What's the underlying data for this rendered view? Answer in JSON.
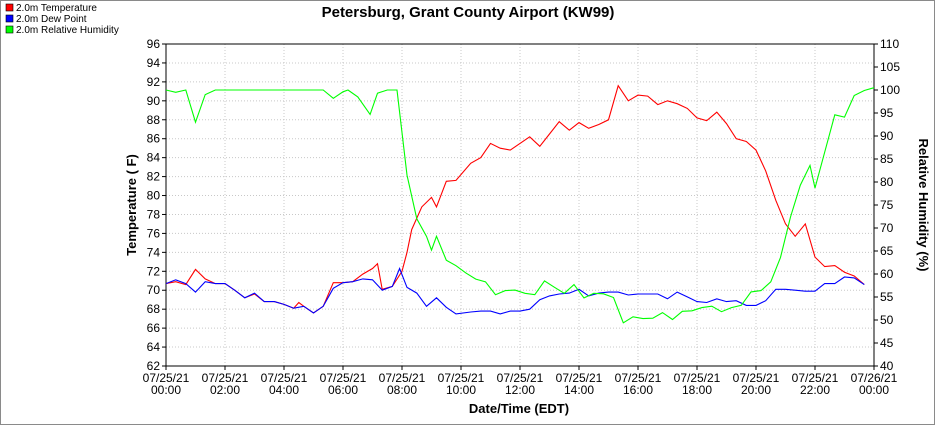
{
  "chart_data": {
    "type": "line",
    "title": "Petersburg, Grant County Airport (KW99)",
    "xlabel": "Date/Time (EDT)",
    "ylabel": "Temperature ( F)",
    "y2label": "Relative Humidity (%)",
    "ylim": [
      62,
      96
    ],
    "y2lim": [
      40,
      110
    ],
    "xlim_hours": [
      0,
      24
    ],
    "grid": true,
    "legend_placement": "top-left",
    "x_ticks": [
      {
        "l1": "07/25/21",
        "l2": "00:00"
      },
      {
        "l1": "07/25/21",
        "l2": "02:00"
      },
      {
        "l1": "07/25/21",
        "l2": "04:00"
      },
      {
        "l1": "07/25/21",
        "l2": "06:00"
      },
      {
        "l1": "07/25/21",
        "l2": "08:00"
      },
      {
        "l1": "07/25/21",
        "l2": "10:00"
      },
      {
        "l1": "07/25/21",
        "l2": "12:00"
      },
      {
        "l1": "07/25/21",
        "l2": "14:00"
      },
      {
        "l1": "07/25/21",
        "l2": "16:00"
      },
      {
        "l1": "07/25/21",
        "l2": "18:00"
      },
      {
        "l1": "07/25/21",
        "l2": "20:00"
      },
      {
        "l1": "07/25/21",
        "l2": "22:00"
      },
      {
        "l1": "07/26/21",
        "l2": "00:00"
      }
    ],
    "y_ticks": [
      62,
      64,
      66,
      68,
      70,
      72,
      74,
      76,
      78,
      80,
      82,
      84,
      86,
      88,
      90,
      92,
      94,
      96
    ],
    "y2_ticks": [
      40,
      45,
      50,
      55,
      60,
      65,
      70,
      75,
      80,
      85,
      90,
      95,
      100,
      105,
      110
    ],
    "series": [
      {
        "name": "2.0m Temperature",
        "color": "#ff0000",
        "axis": "left",
        "points": [
          [
            0.0,
            70.7
          ],
          [
            0.33,
            70.9
          ],
          [
            0.67,
            70.6
          ],
          [
            1.0,
            72.2
          ],
          [
            1.33,
            71.2
          ],
          [
            1.67,
            70.7
          ],
          [
            2.0,
            70.7
          ],
          [
            2.33,
            70.0
          ],
          [
            2.67,
            69.2
          ],
          [
            3.0,
            69.6
          ],
          [
            3.33,
            68.8
          ],
          [
            3.67,
            68.8
          ],
          [
            4.0,
            68.5
          ],
          [
            4.33,
            68.1
          ],
          [
            4.5,
            68.7
          ],
          [
            4.67,
            68.3
          ],
          [
            5.0,
            67.6
          ],
          [
            5.33,
            68.3
          ],
          [
            5.67,
            70.8
          ],
          [
            6.0,
            70.8
          ],
          [
            6.33,
            70.9
          ],
          [
            6.67,
            71.7
          ],
          [
            7.0,
            72.3
          ],
          [
            7.17,
            72.8
          ],
          [
            7.33,
            70.1
          ],
          [
            7.67,
            70.4
          ],
          [
            8.0,
            72.0
          ],
          [
            8.17,
            74.0
          ],
          [
            8.33,
            76.4
          ],
          [
            8.67,
            78.8
          ],
          [
            9.0,
            79.8
          ],
          [
            9.17,
            78.8
          ],
          [
            9.5,
            81.5
          ],
          [
            9.83,
            81.6
          ],
          [
            10.33,
            83.4
          ],
          [
            10.67,
            84.0
          ],
          [
            11.0,
            85.5
          ],
          [
            11.33,
            85.0
          ],
          [
            11.67,
            84.8
          ],
          [
            12.0,
            85.5
          ],
          [
            12.33,
            86.2
          ],
          [
            12.67,
            85.2
          ],
          [
            13.0,
            86.5
          ],
          [
            13.33,
            87.8
          ],
          [
            13.67,
            86.9
          ],
          [
            14.0,
            87.7
          ],
          [
            14.33,
            87.1
          ],
          [
            14.67,
            87.5
          ],
          [
            15.0,
            88.0
          ],
          [
            15.33,
            91.6
          ],
          [
            15.67,
            90.0
          ],
          [
            16.0,
            90.6
          ],
          [
            16.33,
            90.5
          ],
          [
            16.67,
            89.6
          ],
          [
            17.0,
            90.0
          ],
          [
            17.33,
            89.7
          ],
          [
            17.67,
            89.2
          ],
          [
            18.0,
            88.2
          ],
          [
            18.33,
            87.9
          ],
          [
            18.67,
            88.8
          ],
          [
            19.0,
            87.6
          ],
          [
            19.33,
            86.0
          ],
          [
            19.67,
            85.7
          ],
          [
            20.0,
            84.8
          ],
          [
            20.33,
            82.6
          ],
          [
            20.67,
            79.5
          ],
          [
            21.0,
            77.0
          ],
          [
            21.33,
            75.7
          ],
          [
            21.67,
            77.0
          ],
          [
            22.0,
            73.5
          ],
          [
            22.33,
            72.5
          ],
          [
            22.67,
            72.6
          ],
          [
            23.0,
            71.9
          ],
          [
            23.33,
            71.5
          ],
          [
            23.67,
            70.6
          ]
        ]
      },
      {
        "name": "2.0m Dew Point",
        "color": "#0000ff",
        "axis": "left",
        "points": [
          [
            0.0,
            70.7
          ],
          [
            0.33,
            71.1
          ],
          [
            0.67,
            70.7
          ],
          [
            1.0,
            69.8
          ],
          [
            1.33,
            70.9
          ],
          [
            1.67,
            70.7
          ],
          [
            2.0,
            70.7
          ],
          [
            2.33,
            70.0
          ],
          [
            2.67,
            69.2
          ],
          [
            3.0,
            69.7
          ],
          [
            3.33,
            68.8
          ],
          [
            3.67,
            68.8
          ],
          [
            4.0,
            68.5
          ],
          [
            4.33,
            68.1
          ],
          [
            4.67,
            68.3
          ],
          [
            5.0,
            67.6
          ],
          [
            5.33,
            68.3
          ],
          [
            5.67,
            70.2
          ],
          [
            6.0,
            70.8
          ],
          [
            6.33,
            70.9
          ],
          [
            6.67,
            71.2
          ],
          [
            7.0,
            71.1
          ],
          [
            7.33,
            70.0
          ],
          [
            7.67,
            70.4
          ],
          [
            7.92,
            72.3
          ],
          [
            8.17,
            70.3
          ],
          [
            8.5,
            69.7
          ],
          [
            8.83,
            68.3
          ],
          [
            9.17,
            69.2
          ],
          [
            9.5,
            68.2
          ],
          [
            9.83,
            67.5
          ],
          [
            10.33,
            67.7
          ],
          [
            10.67,
            67.8
          ],
          [
            11.0,
            67.8
          ],
          [
            11.33,
            67.5
          ],
          [
            11.67,
            67.8
          ],
          [
            12.0,
            67.8
          ],
          [
            12.33,
            68.0
          ],
          [
            12.67,
            69.0
          ],
          [
            13.0,
            69.4
          ],
          [
            13.33,
            69.6
          ],
          [
            13.67,
            69.7
          ],
          [
            14.0,
            70.1
          ],
          [
            14.33,
            69.4
          ],
          [
            14.67,
            69.7
          ],
          [
            15.0,
            69.8
          ],
          [
            15.33,
            69.8
          ],
          [
            15.67,
            69.5
          ],
          [
            16.0,
            69.6
          ],
          [
            16.33,
            69.6
          ],
          [
            16.67,
            69.6
          ],
          [
            17.0,
            69.1
          ],
          [
            17.33,
            69.8
          ],
          [
            17.67,
            69.3
          ],
          [
            18.0,
            68.8
          ],
          [
            18.33,
            68.7
          ],
          [
            18.67,
            69.1
          ],
          [
            19.0,
            68.8
          ],
          [
            19.33,
            68.9
          ],
          [
            19.67,
            68.4
          ],
          [
            20.0,
            68.4
          ],
          [
            20.33,
            68.9
          ],
          [
            20.67,
            70.1
          ],
          [
            21.0,
            70.1
          ],
          [
            21.33,
            70.0
          ],
          [
            21.67,
            69.9
          ],
          [
            22.0,
            69.9
          ],
          [
            22.33,
            70.7
          ],
          [
            22.67,
            70.7
          ],
          [
            23.0,
            71.4
          ],
          [
            23.33,
            71.3
          ],
          [
            23.67,
            70.6
          ]
        ]
      },
      {
        "name": "2.0m Relative Humidity",
        "color": "#00ff00",
        "axis": "right",
        "points": [
          [
            0.0,
            100
          ],
          [
            0.33,
            99.5
          ],
          [
            0.67,
            100
          ],
          [
            1.0,
            93
          ],
          [
            1.33,
            99
          ],
          [
            1.67,
            100
          ],
          [
            2.0,
            100
          ],
          [
            3.0,
            100
          ],
          [
            4.0,
            100
          ],
          [
            5.0,
            100
          ],
          [
            5.33,
            100
          ],
          [
            5.67,
            98.2
          ],
          [
            6.0,
            99.6
          ],
          [
            6.17,
            100
          ],
          [
            6.5,
            98.5
          ],
          [
            6.92,
            94.7
          ],
          [
            7.17,
            99.3
          ],
          [
            7.5,
            100
          ],
          [
            7.83,
            100
          ],
          [
            8.17,
            81.5
          ],
          [
            8.5,
            72
          ],
          [
            8.83,
            68.2
          ],
          [
            9.0,
            65.2
          ],
          [
            9.17,
            68.2
          ],
          [
            9.5,
            63.0
          ],
          [
            9.83,
            61.8
          ],
          [
            10.17,
            60.2
          ],
          [
            10.5,
            58.9
          ],
          [
            10.83,
            58.3
          ],
          [
            11.17,
            55.5
          ],
          [
            11.5,
            56.4
          ],
          [
            11.83,
            56.5
          ],
          [
            12.17,
            55.8
          ],
          [
            12.5,
            55.5
          ],
          [
            12.83,
            58.5
          ],
          [
            13.17,
            57.1
          ],
          [
            13.5,
            55.8
          ],
          [
            13.83,
            57.7
          ],
          [
            14.17,
            54.8
          ],
          [
            14.5,
            55.8
          ],
          [
            14.83,
            55.7
          ],
          [
            15.17,
            54.9
          ],
          [
            15.5,
            49.4
          ],
          [
            15.83,
            50.7
          ],
          [
            16.17,
            50.3
          ],
          [
            16.5,
            50.4
          ],
          [
            16.83,
            51.6
          ],
          [
            17.17,
            50.1
          ],
          [
            17.5,
            51.9
          ],
          [
            17.83,
            52.0
          ],
          [
            18.17,
            52.7
          ],
          [
            18.5,
            53.0
          ],
          [
            18.83,
            51.8
          ],
          [
            19.17,
            52.7
          ],
          [
            19.5,
            53.2
          ],
          [
            19.83,
            56.1
          ],
          [
            20.17,
            56.4
          ],
          [
            20.5,
            58.3
          ],
          [
            20.83,
            63.6
          ],
          [
            21.17,
            72.4
          ],
          [
            21.5,
            79.3
          ],
          [
            21.83,
            83.6
          ],
          [
            22.0,
            78.7
          ],
          [
            22.33,
            86.5
          ],
          [
            22.67,
            94.6
          ],
          [
            23.0,
            94.1
          ],
          [
            23.33,
            98.8
          ],
          [
            23.67,
            99.9
          ],
          [
            24.0,
            100.5
          ]
        ]
      }
    ]
  }
}
